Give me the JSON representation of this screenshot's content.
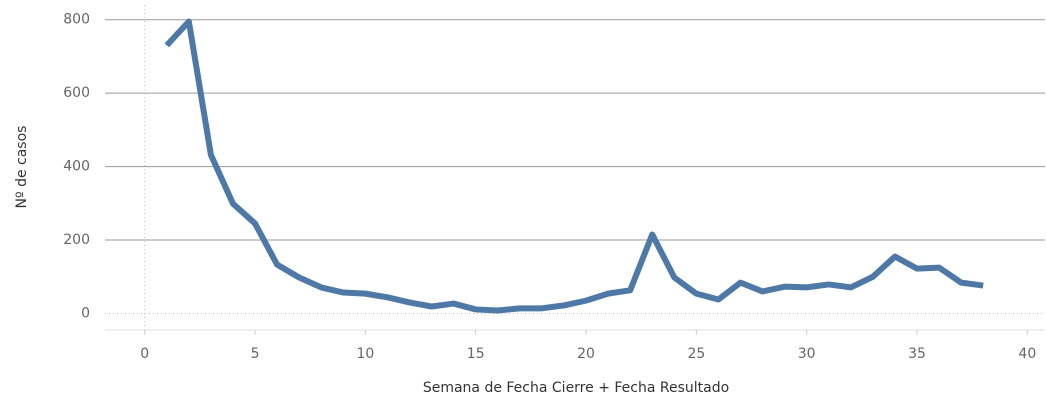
{
  "chart_data": {
    "type": "line",
    "x_label": "Semana de Fecha Cierre + Fecha Resultado",
    "y_label": "Nº de casos",
    "x": [
      1,
      2,
      3,
      4,
      5,
      6,
      7,
      8,
      9,
      10,
      11,
      12,
      13,
      14,
      15,
      16,
      17,
      18,
      19,
      20,
      21,
      22,
      23,
      24,
      25,
      26,
      27,
      28,
      29,
      30,
      31,
      32,
      33,
      34,
      35,
      36,
      37,
      38
    ],
    "series": [
      {
        "name": "Nº de casos",
        "color": "#4e79a7",
        "values": [
          730,
          795,
          432,
          299,
          245,
          133,
          98,
          71,
          57,
          54,
          44,
          30,
          19,
          27,
          11,
          8,
          14,
          14,
          22,
          35,
          54,
          63,
          215,
          98,
          54,
          38,
          84,
          60,
          73,
          71,
          79,
          71,
          100,
          155,
          122,
          125,
          84,
          76
        ]
      }
    ],
    "xlim": [
      -1.8,
      40.8
    ],
    "xticks": [
      0,
      5,
      10,
      15,
      20,
      25,
      30,
      35,
      40
    ],
    "ylim": [
      -45,
      840
    ],
    "yticks": [
      0,
      200,
      400,
      600,
      800
    ],
    "grid": true
  }
}
